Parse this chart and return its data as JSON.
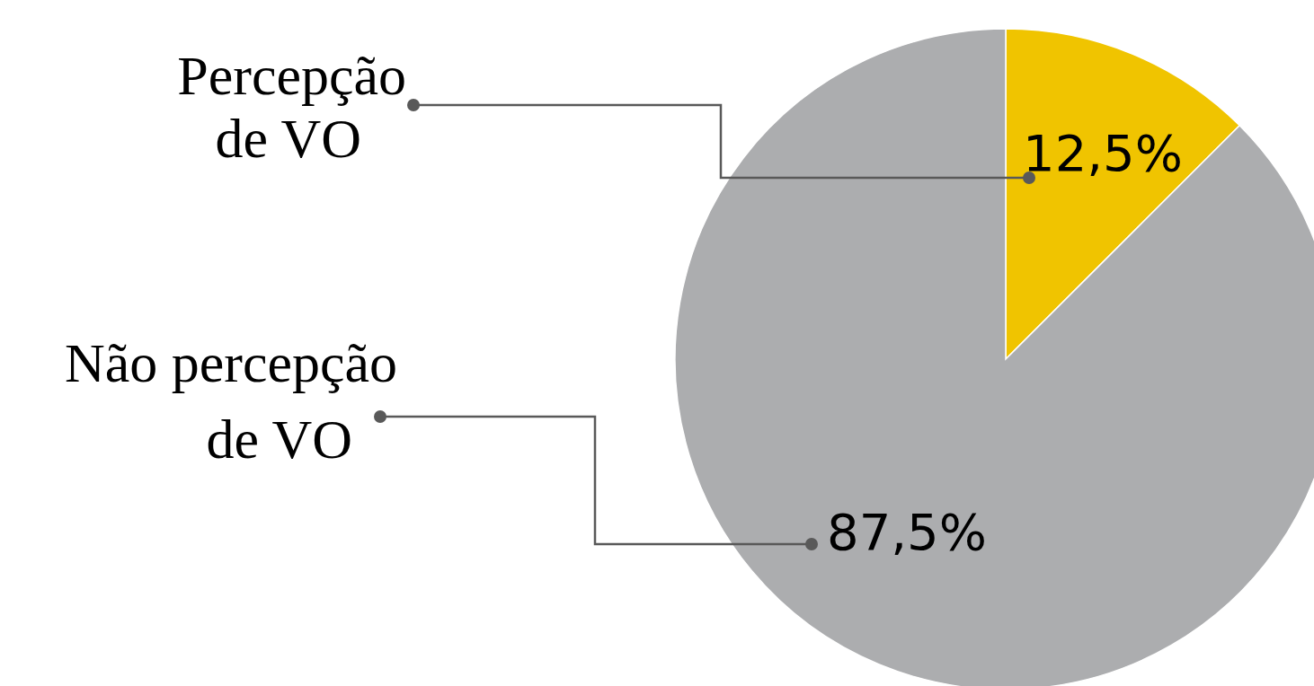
{
  "chart_data": {
    "type": "pie",
    "categories": [
      "Percepção de VO",
      "Não percepção de VO"
    ],
    "values": [
      12.5,
      87.5
    ],
    "colors": [
      "#f0c400",
      "#acadaf"
    ],
    "value_labels": [
      "12,5%",
      "87,5%"
    ]
  }
}
